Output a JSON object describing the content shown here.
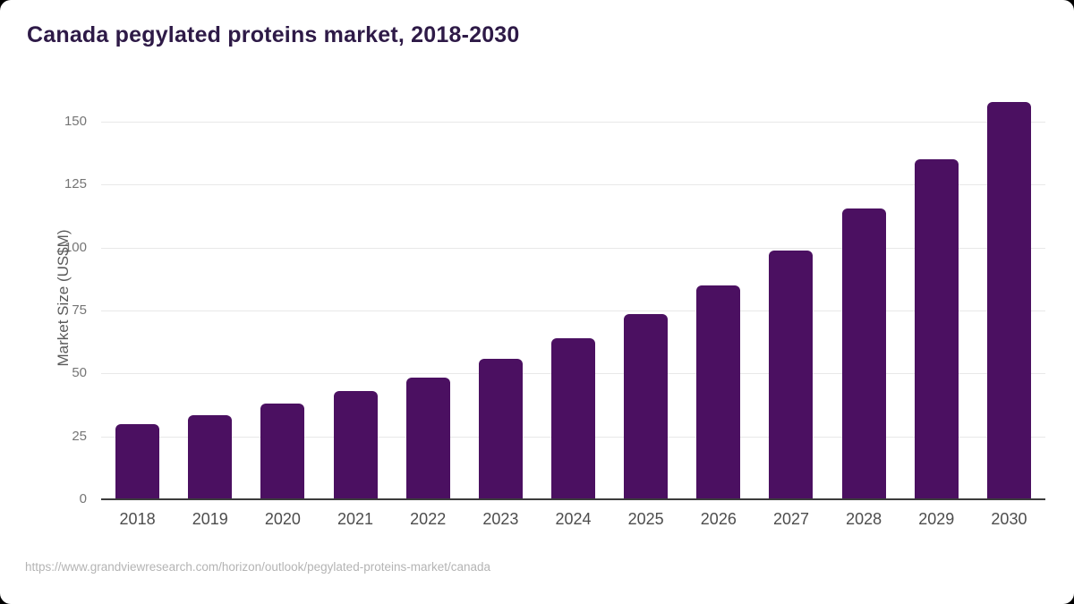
{
  "page": {
    "source_url": "https://www.grandviewresearch.com/horizon/outlook/pegylated-proteins-market/canada"
  },
  "colors": {
    "background": "#ffffff",
    "bar": "#4b1061",
    "title": "#2e1a47",
    "gridline": "#e8e8e8",
    "axis_line": "#3c3c3c",
    "y_tick_label": "#757575",
    "x_tick_label": "#4d4d4d",
    "y_axis_title": "#5a5a5a",
    "source_text": "#b4b4b4"
  },
  "chart_data": {
    "type": "bar",
    "title": "Canada pegylated proteins market, 2018-2030",
    "categories": [
      "2018",
      "2019",
      "2020",
      "2021",
      "2022",
      "2023",
      "2024",
      "2025",
      "2026",
      "2027",
      "2028",
      "2029",
      "2030"
    ],
    "values": [
      30,
      33.5,
      38,
      43,
      48.5,
      56,
      64,
      73.5,
      85,
      99,
      115.5,
      135,
      158
    ],
    "xlabel": "",
    "ylabel": "Market Size (US$M)",
    "yticks": [
      0,
      25,
      50,
      75,
      100,
      125,
      150
    ],
    "ylim": [
      0,
      160
    ],
    "grid": true,
    "legend": false,
    "bar_color": "#4b1061"
  }
}
